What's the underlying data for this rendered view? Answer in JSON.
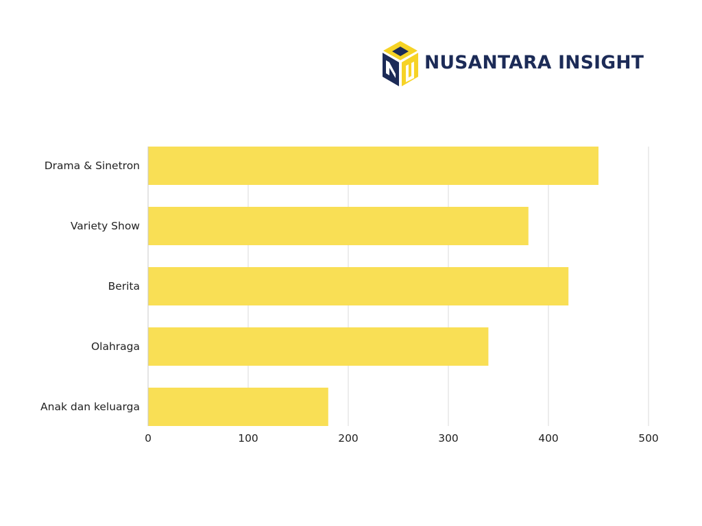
{
  "brand": {
    "name": "NUSANTARA INSIGHT",
    "logo_icon": "nusantara-cube-logo",
    "primary_color": "#1c2b57",
    "accent_color": "#f6d326"
  },
  "chart_data": {
    "type": "bar",
    "orientation": "horizontal",
    "categories": [
      "Drama & Sinetron",
      "Variety Show",
      "Berita",
      "Olahraga",
      "Anak dan keluarga"
    ],
    "values": [
      450,
      380,
      420,
      340,
      180
    ],
    "xlim": [
      0,
      500
    ],
    "xticks": [
      0,
      100,
      200,
      300,
      400,
      500
    ],
    "xtick_labels": [
      "0",
      "100",
      "200",
      "300",
      "400",
      "500"
    ],
    "grid": true,
    "bar_color": "#f9df55",
    "grid_color": "#d9d9d9",
    "title": "",
    "xlabel": "",
    "ylabel": ""
  }
}
